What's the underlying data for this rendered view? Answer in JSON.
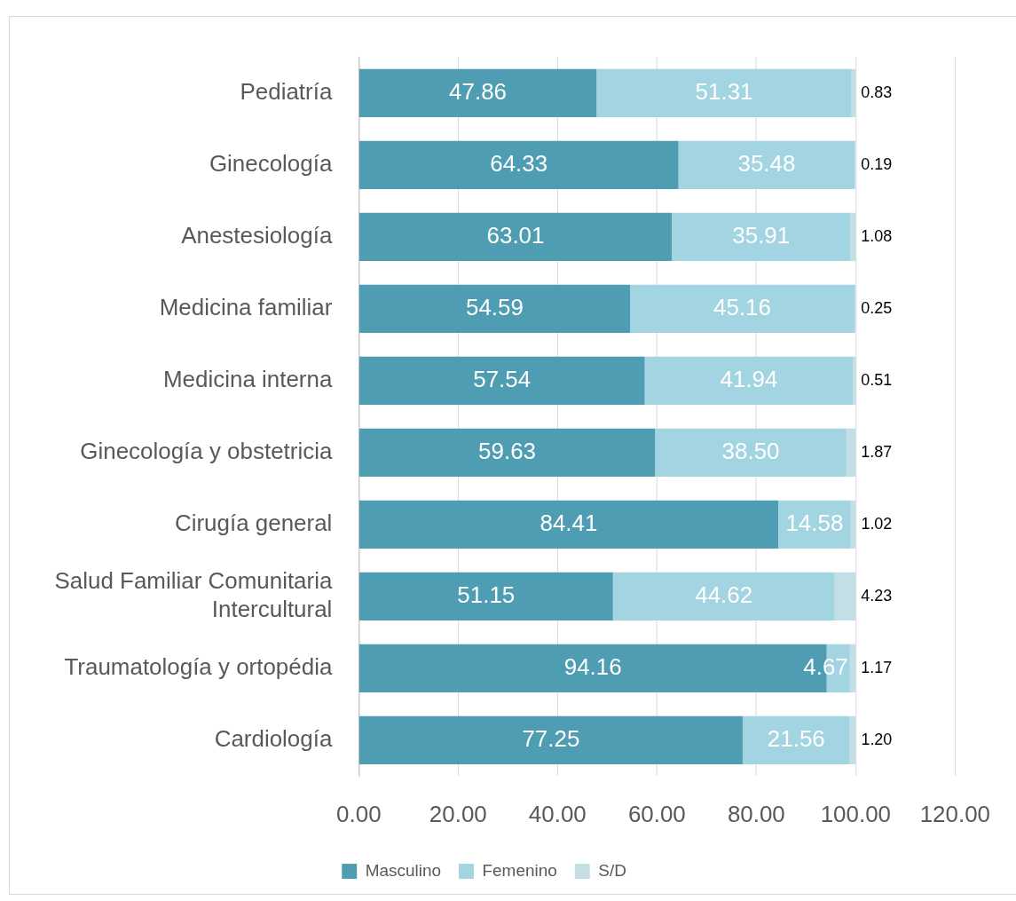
{
  "chart_data": {
    "type": "bar",
    "orientation": "horizontal",
    "stacked": true,
    "categories": [
      "Pediatría",
      "Ginecología",
      "Anestesiología",
      "Medicina familiar",
      "Medicina interna",
      "Ginecología y obstetricia",
      "Cirugía general",
      "Salud Familiar Comunitaria Intercultural",
      "Traumatología y ortopédia",
      "Cardiología"
    ],
    "series": [
      {
        "name": "Masculino",
        "color": "#4e9db2",
        "values": [
          47.86,
          64.33,
          63.01,
          54.59,
          57.54,
          59.63,
          84.41,
          51.15,
          94.16,
          77.25
        ],
        "value_labels": [
          "47.86",
          "64.33",
          "63.01",
          "54.59",
          "57.54",
          "59.63",
          "84.41",
          "51.15",
          "94.16",
          "77.25"
        ]
      },
      {
        "name": "Femenino",
        "color": "#a2d4e2",
        "values": [
          51.31,
          35.48,
          35.91,
          45.16,
          41.94,
          38.5,
          14.58,
          44.62,
          4.67,
          21.56
        ],
        "value_labels": [
          "51.31",
          "35.48",
          "35.91",
          "45.16",
          "41.94",
          "38.50",
          "14.58",
          "44.62",
          "4.67",
          "21.56"
        ]
      },
      {
        "name": "S/D",
        "color": "#c4dee6",
        "values": [
          0.83,
          0.19,
          1.08,
          0.25,
          0.51,
          1.87,
          1.02,
          4.23,
          1.17,
          1.2
        ],
        "value_labels": [
          "0.83",
          "0.19",
          "1.08",
          "0.25",
          "0.51",
          "1.87",
          "1.02",
          "4.23",
          "1.17",
          "1.20"
        ]
      }
    ],
    "xlim": [
      0,
      120
    ],
    "xticks": [
      {
        "value": 0,
        "label": "0.00"
      },
      {
        "value": 20,
        "label": "20.00"
      },
      {
        "value": 40,
        "label": "40.00"
      },
      {
        "value": 60,
        "label": "60.00"
      },
      {
        "value": 80,
        "label": "80.00"
      },
      {
        "value": 100,
        "label": "100.00"
      },
      {
        "value": 120,
        "label": "120.00"
      }
    ],
    "grid": "x",
    "legend": "bottom"
  }
}
